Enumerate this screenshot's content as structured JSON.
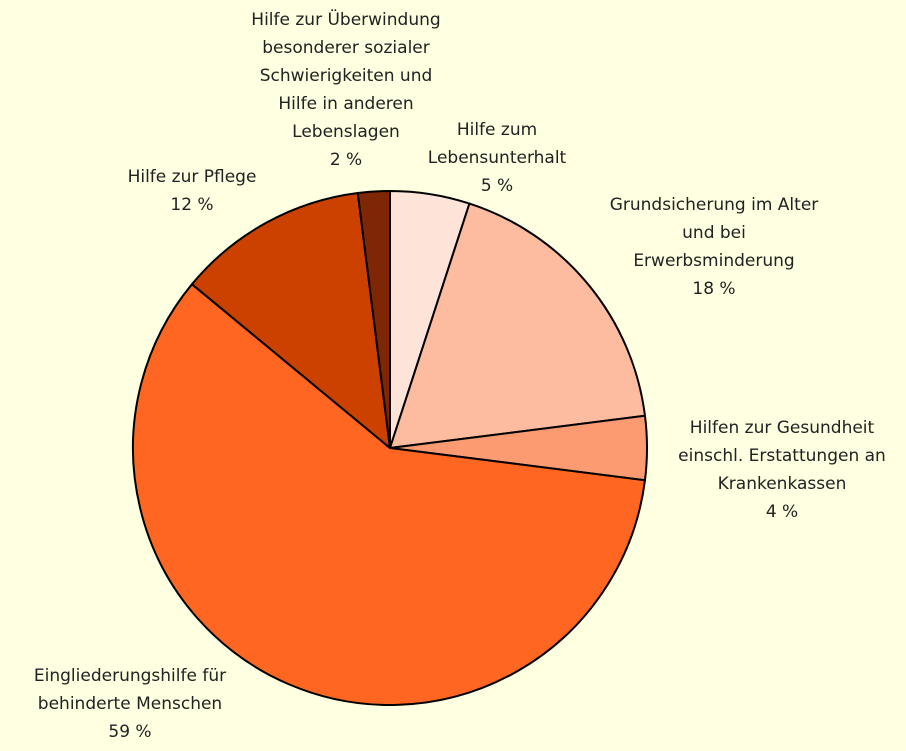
{
  "chart_data": {
    "type": "pie",
    "categories": [
      [
        "Hilfe zum",
        "Lebensunterhalt"
      ],
      [
        "Grundsicherung im Alter",
        "und bei",
        "Erwerbsminderung"
      ],
      [
        "Hilfen zur Gesundheit",
        "einschl. Erstattungen an",
        "Krankenkassen"
      ],
      [
        "Eingliederungshilfe für",
        "behinderte Menschen"
      ],
      [
        "Hilfe zur Pflege"
      ],
      [
        "Hilfe zur Überwindung",
        "besonderer sozialer",
        "Schwierigkeiten und",
        "Hilfe in anderen",
        "Lebenslagen"
      ]
    ],
    "values": [
      5,
      18,
      4,
      59,
      12,
      2
    ],
    "value_labels": [
      "5 %",
      "18 %",
      "4 %",
      "59 %",
      "12 %",
      "2 %"
    ],
    "colors": [
      "#fde3d8",
      "#fdbca0",
      "#fc9a72",
      "#ff6622",
      "#cc4000",
      "#7f2704"
    ]
  }
}
